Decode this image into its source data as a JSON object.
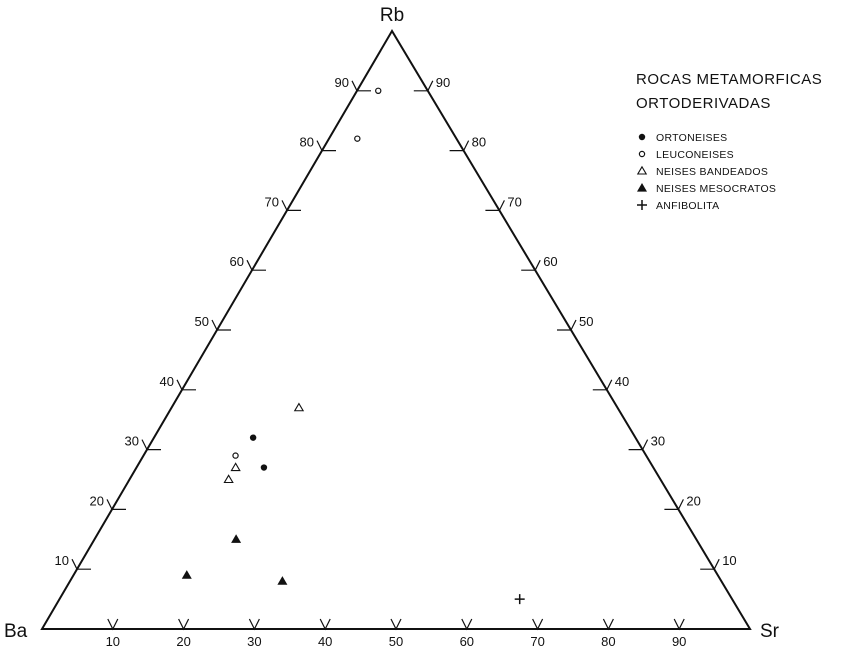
{
  "chart_data": {
    "type": "ternary-scatter",
    "vertices": {
      "top": "Rb",
      "left": "Ba",
      "right": "Sr"
    },
    "tick_values": [
      10,
      20,
      30,
      40,
      50,
      60,
      70,
      80,
      90
    ],
    "legend": {
      "title_lines": [
        "ROCAS METAMORFICAS",
        "ORTODERIVADAS"
      ],
      "items": [
        {
          "label": "ORTONEISES",
          "marker": "filled-circle"
        },
        {
          "label": "LEUCONEISES",
          "marker": "open-circle"
        },
        {
          "label": "NEISES BANDEADOS",
          "marker": "open-triangle"
        },
        {
          "label": "NEISES MESOCRATOS",
          "marker": "filled-triangle"
        },
        {
          "label": "ANFIBOLITA",
          "marker": "plus"
        }
      ]
    },
    "series": [
      {
        "name": "ORTONEISES",
        "marker": "filled-circle",
        "points": [
          {
            "Rb": 32,
            "Sr": 14,
            "Ba": 54
          },
          {
            "Rb": 27,
            "Sr": 18,
            "Ba": 55
          }
        ]
      },
      {
        "name": "LEUCONEISES",
        "marker": "open-circle",
        "points": [
          {
            "Rb": 90,
            "Sr": 3,
            "Ba": 7
          },
          {
            "Rb": 82,
            "Sr": 4,
            "Ba": 14
          },
          {
            "Rb": 29,
            "Sr": 13,
            "Ba": 58
          }
        ]
      },
      {
        "name": "NEISES BANDEADOS",
        "marker": "open-triangle",
        "points": [
          {
            "Rb": 37,
            "Sr": 18,
            "Ba": 45
          },
          {
            "Rb": 27,
            "Sr": 14,
            "Ba": 59
          },
          {
            "Rb": 25,
            "Sr": 14,
            "Ba": 61
          }
        ]
      },
      {
        "name": "NEISES MESOCRATOS",
        "marker": "filled-triangle",
        "points": [
          {
            "Rb": 15,
            "Sr": 20,
            "Ba": 65
          },
          {
            "Rb": 9,
            "Sr": 16,
            "Ba": 75
          },
          {
            "Rb": 8,
            "Sr": 30,
            "Ba": 62
          }
        ]
      },
      {
        "name": "ANFIBOLITA",
        "marker": "plus",
        "points": [
          {
            "Rb": 5,
            "Sr": 65,
            "Ba": 30
          }
        ]
      }
    ]
  }
}
